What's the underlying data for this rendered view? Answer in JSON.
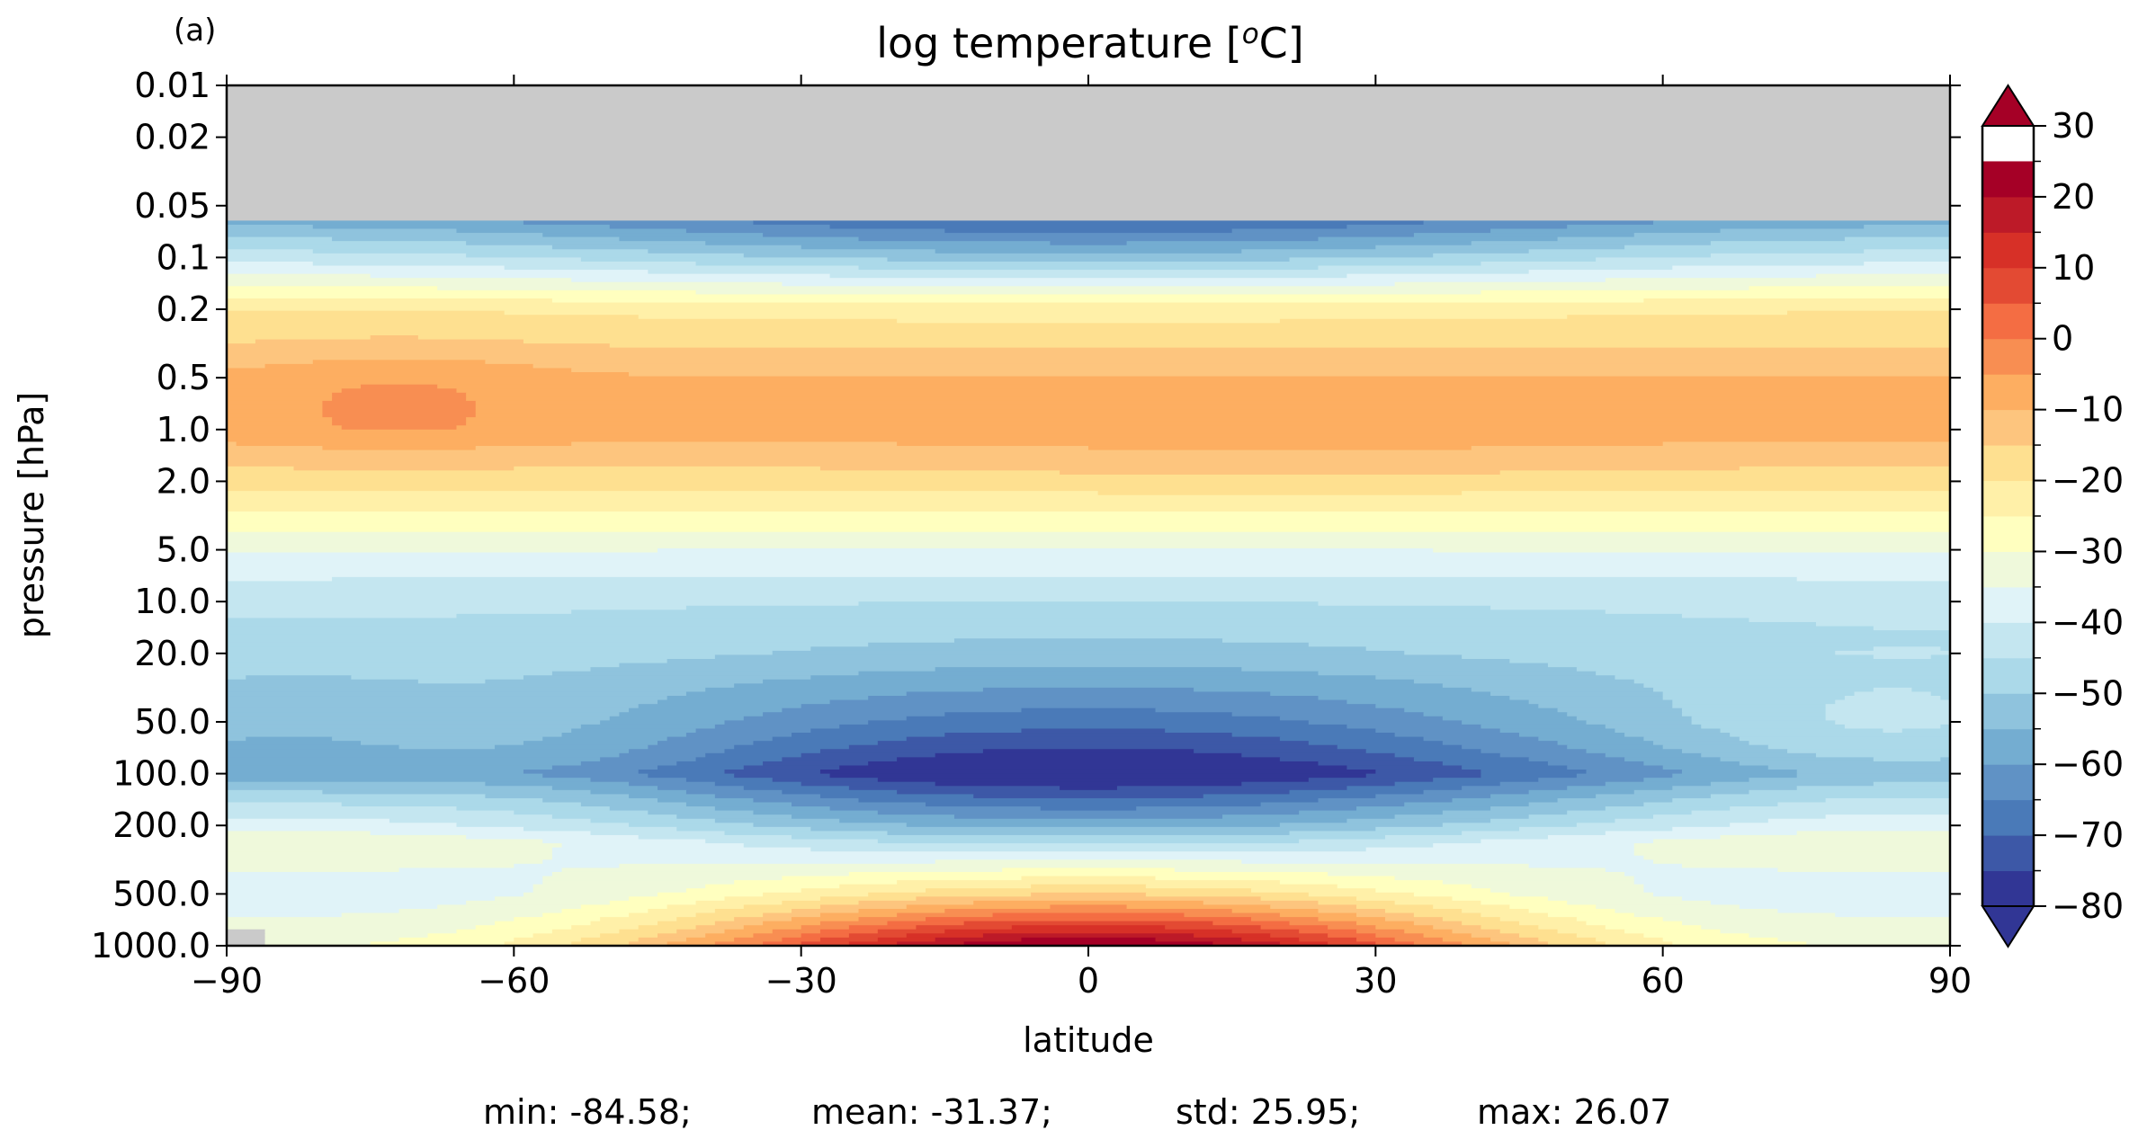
{
  "figure": {
    "panel_label": "(a)",
    "title": "log temperature [",
    "title_sup": "o",
    "title_end": "C]",
    "stats": {
      "min": "min: -84.58;",
      "mean": "mean: -31.37;",
      "std": "std: 25.95;",
      "max": "max: 26.07"
    }
  },
  "chart_data": {
    "type": "heatmap",
    "subtype": "filled-contour",
    "title": "log temperature [oC]",
    "xlabel": "latitude",
    "ylabel": "pressure [hPa]",
    "xlim": [
      -90,
      90
    ],
    "ylim": [
      0.01,
      1000.0
    ],
    "y_scale": "log (inverted, surface at bottom)",
    "x_ticks": [
      -90,
      -60,
      -30,
      0,
      30,
      60,
      90
    ],
    "x_tick_labels": [
      "−90",
      "−60",
      "−30",
      "0",
      "30",
      "60",
      "90"
    ],
    "y_ticks": [
      0.01,
      0.02,
      0.05,
      0.1,
      0.2,
      0.5,
      1.0,
      2.0,
      5.0,
      10.0,
      20.0,
      50.0,
      100.0,
      200.0,
      500.0,
      1000.0
    ],
    "y_tick_labels": [
      "0.01",
      "0.02",
      "0.05",
      "0.1",
      "0.2",
      "0.5",
      "1.0",
      "2.0",
      "5.0",
      "10.0",
      "20.0",
      "50.0",
      "100.0",
      "200.0",
      "500.0",
      "1000.0"
    ],
    "masked_color": "#cacaca",
    "masked_regions": [
      "pressure < 0.06 hPa (top of domain)",
      "surface near -90 latitude"
    ],
    "colorbar": {
      "levels": [
        -80,
        -75,
        -70,
        -65,
        -60,
        -55,
        -50,
        -45,
        -40,
        -35,
        -30,
        -25,
        -20,
        -15,
        -10,
        -5,
        0,
        5,
        10,
        15,
        20,
        25,
        30
      ],
      "tick_values": [
        30,
        20,
        10,
        0,
        -10,
        -20,
        -30,
        -40,
        -50,
        -60,
        -70,
        -80
      ],
      "tick_labels": [
        "30",
        "20",
        "10",
        "0",
        "−10",
        "−20",
        "−30",
        "−40",
        "−50",
        "−60",
        "−70",
        "−80"
      ],
      "extend": "both",
      "colormap": "RdYlBu_r",
      "colors": [
        "#313695",
        "#3d58a7",
        "#4a7ab8",
        "#6092c5",
        "#74add1",
        "#8fc3dd",
        "#abd9e9",
        "#c4e6f0",
        "#e0f3f8",
        "#eff9db",
        "#ffffbf",
        "#fff0a8",
        "#fee090",
        "#fdc57e",
        "#fdae61",
        "#f88e52",
        "#f46d43",
        "#e34a33",
        "#d73027",
        "#bd1a28",
        "#a50026"
      ],
      "under_color": "#313695",
      "over_color": "#a50026"
    },
    "profile_0_lat": [
      {
        "pressure": 0.06,
        "value": -65
      },
      {
        "pressure": 0.1,
        "value": -48
      },
      {
        "pressure": 0.2,
        "value": -22
      },
      {
        "pressure": 0.5,
        "value": -10
      },
      {
        "pressure": 1.0,
        "value": -8
      },
      {
        "pressure": 2.0,
        "value": -18
      },
      {
        "pressure": 5.0,
        "value": -35
      },
      {
        "pressure": 10.0,
        "value": -45
      },
      {
        "pressure": 20.0,
        "value": -52
      },
      {
        "pressure": 50.0,
        "value": -68
      },
      {
        "pressure": 100.0,
        "value": -82
      },
      {
        "pressure": 200.0,
        "value": -57
      },
      {
        "pressure": 500.0,
        "value": -15
      },
      {
        "pressure": 1000.0,
        "value": 26
      }
    ],
    "features": [
      {
        "name": "tropical tropopause minimum",
        "lat_range": [
          -15,
          15
        ],
        "pressure": 100,
        "value": -82
      },
      {
        "name": "stratopause warm band",
        "pressure": 1.0,
        "value": -8
      },
      {
        "name": "southern polar stratopause maximum",
        "lat_range": [
          -82,
          -62
        ],
        "pressure": 0.7,
        "value": -6
      },
      {
        "name": "tropical surface maximum",
        "lat_range": [
          -15,
          15
        ],
        "pressure": 1000,
        "value": 26
      },
      {
        "name": "equatorial upper mesosphere minimum",
        "lat_range": [
          -10,
          10
        ],
        "pressure": 0.06,
        "value": -72
      }
    ]
  }
}
